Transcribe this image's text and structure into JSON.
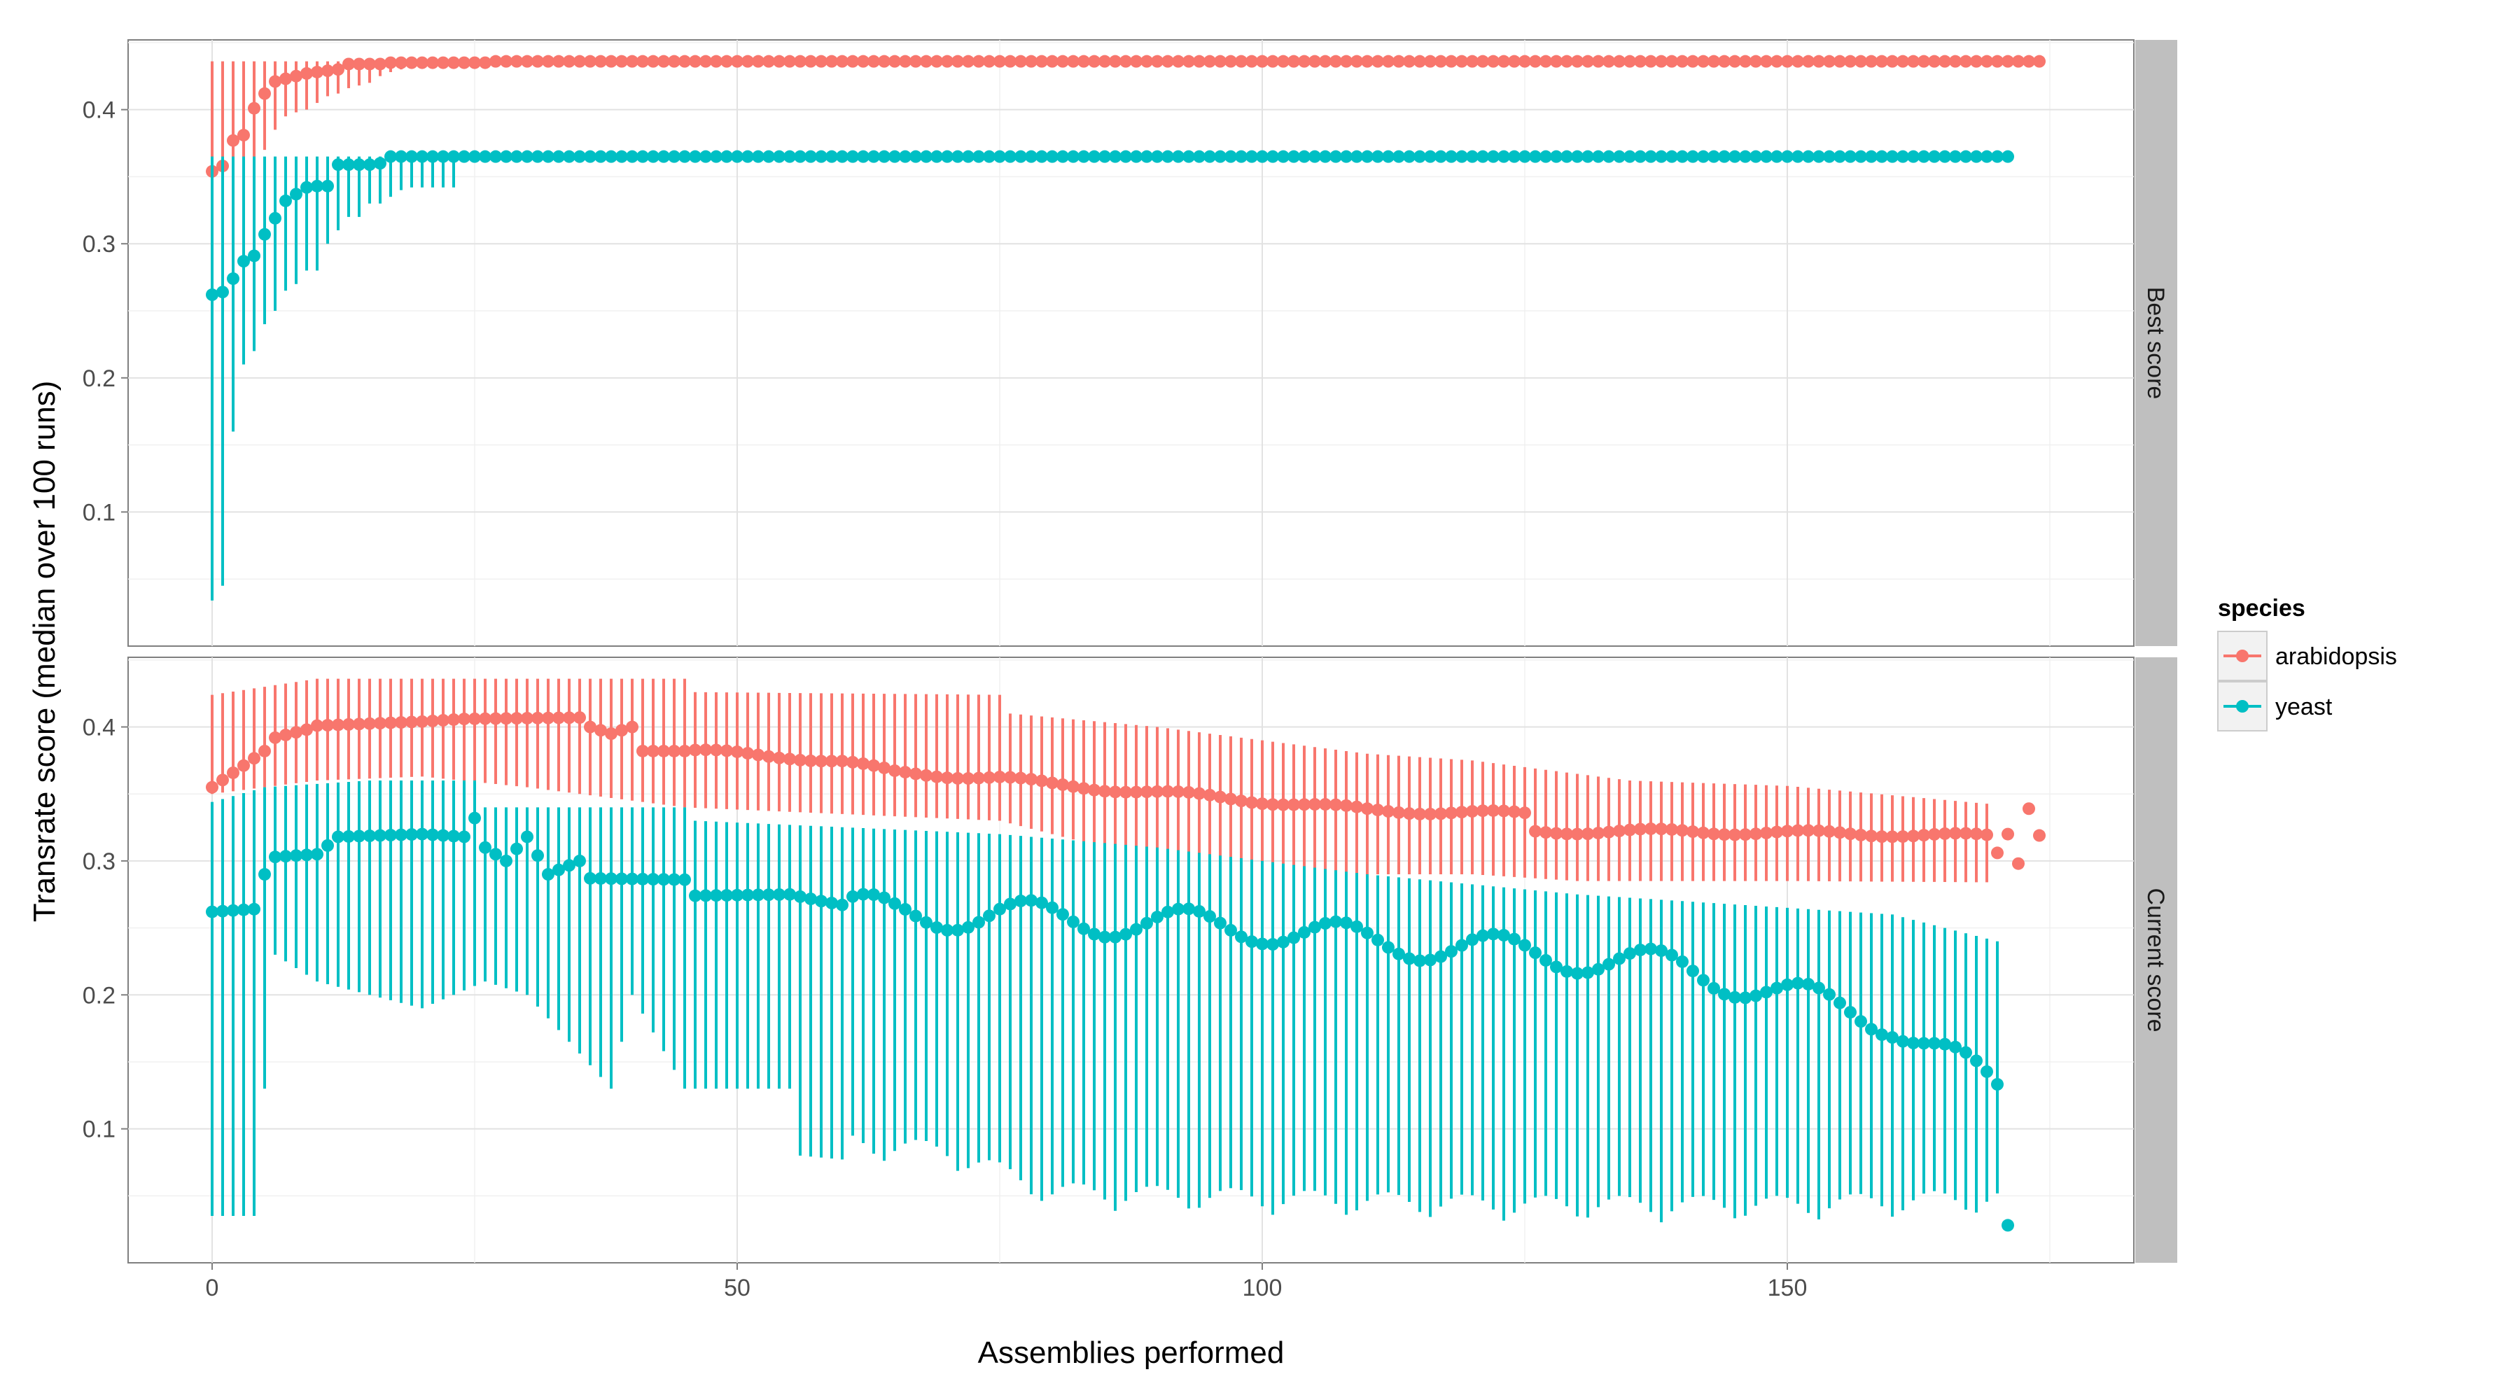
{
  "chart_data": {
    "type": "scatter",
    "description_type": "faceted point + errorbar (pointrange) chart",
    "xlabel": "Assemblies performed",
    "ylabel": "Transrate score (median over 100 runs)",
    "xlim": [
      -8,
      183
    ],
    "ylim": [
      0,
      0.452
    ],
    "x_ticks": [
      0,
      50,
      100,
      150
    ],
    "y_ticks": [
      0.1,
      0.2,
      0.3,
      0.4
    ],
    "y_tick_labels": [
      "0.1",
      "0.2",
      "0.3",
      "0.4"
    ],
    "grid": true,
    "legend": {
      "title": "species",
      "position": "right",
      "entries": [
        {
          "label": "arabidopsis",
          "color": "#F8766D"
        },
        {
          "label": "yeast",
          "color": "#00BFC4"
        }
      ]
    },
    "facets": [
      {
        "label": "Best score",
        "series": [
          {
            "name": "arabidopsis",
            "color": "#F8766D",
            "x_end": 174,
            "points": [
              [
                0,
                0.354
              ],
              [
                1,
                0.358
              ],
              [
                2,
                0.377
              ],
              [
                3,
                0.381
              ],
              [
                4,
                0.401
              ],
              [
                5,
                0.412
              ],
              [
                6,
                0.421
              ],
              [
                7,
                0.423
              ],
              [
                8,
                0.425
              ],
              [
                9,
                0.427
              ],
              [
                10,
                0.428
              ],
              [
                11,
                0.429
              ],
              [
                12,
                0.43
              ],
              [
                13,
                0.434
              ],
              [
                14,
                0.434
              ],
              [
                15,
                0.434
              ],
              [
                16,
                0.434
              ],
              [
                17,
                0.435
              ],
              [
                18,
                0.435
              ],
              [
                19,
                0.435
              ],
              [
                20,
                0.435
              ],
              [
                21,
                0.435
              ],
              [
                22,
                0.435
              ],
              [
                23,
                0.435
              ],
              [
                24,
                0.435
              ],
              [
                25,
                0.435
              ],
              [
                26,
                0.435
              ],
              [
                27,
                0.436
              ],
              [
                28,
                0.436
              ],
              [
                29,
                0.436
              ]
            ],
            "plateau": 0.436,
            "plateau_start": 30,
            "upper": 0.436,
            "lower_pts": [
              [
                0,
                0.3
              ],
              [
                1,
                0.31
              ],
              [
                2,
                0.32
              ],
              [
                3,
                0.345
              ],
              [
                4,
                0.355
              ],
              [
                5,
                0.37
              ],
              [
                6,
                0.385
              ],
              [
                7,
                0.395
              ],
              [
                8,
                0.398
              ],
              [
                9,
                0.4
              ],
              [
                10,
                0.405
              ],
              [
                11,
                0.41
              ],
              [
                12,
                0.412
              ],
              [
                13,
                0.416
              ],
              [
                14,
                0.418
              ],
              [
                15,
                0.42
              ],
              [
                16,
                0.425
              ],
              [
                17,
                0.428
              ],
              [
                18,
                0.43
              ],
              [
                19,
                0.432
              ],
              [
                20,
                0.432
              ],
              [
                21,
                0.432
              ],
              [
                22,
                0.433
              ],
              [
                23,
                0.433
              ],
              [
                24,
                0.434
              ],
              [
                25,
                0.434
              ],
              [
                26,
                0.435
              ],
              [
                27,
                0.436
              ]
            ]
          },
          {
            "name": "yeast",
            "color": "#00BFC4",
            "x_end": 171,
            "points": [
              [
                0,
                0.262
              ],
              [
                1,
                0.264
              ],
              [
                2,
                0.274
              ],
              [
                3,
                0.287
              ],
              [
                4,
                0.291
              ],
              [
                5,
                0.307
              ],
              [
                6,
                0.319
              ],
              [
                7,
                0.332
              ],
              [
                8,
                0.337
              ],
              [
                9,
                0.342
              ],
              [
                10,
                0.343
              ],
              [
                11,
                0.343
              ],
              [
                12,
                0.359
              ],
              [
                13,
                0.359
              ],
              [
                14,
                0.359
              ],
              [
                15,
                0.359
              ],
              [
                16,
                0.36
              ]
            ],
            "plateau": 0.365,
            "plateau_start": 17,
            "upper": 0.365,
            "lower_pts": [
              [
                0,
                0.034
              ],
              [
                1,
                0.045
              ],
              [
                2,
                0.16
              ],
              [
                3,
                0.21
              ],
              [
                4,
                0.22
              ],
              [
                5,
                0.24
              ],
              [
                6,
                0.25
              ],
              [
                7,
                0.265
              ],
              [
                8,
                0.27
              ],
              [
                9,
                0.28
              ],
              [
                10,
                0.28
              ],
              [
                11,
                0.3
              ],
              [
                12,
                0.31
              ],
              [
                13,
                0.32
              ],
              [
                14,
                0.32
              ],
              [
                15,
                0.33
              ],
              [
                16,
                0.33
              ],
              [
                17,
                0.335
              ],
              [
                18,
                0.34
              ],
              [
                19,
                0.342
              ],
              [
                20,
                0.342
              ],
              [
                21,
                0.342
              ],
              [
                22,
                0.342
              ],
              [
                23,
                0.342
              ]
            ]
          }
        ]
      },
      {
        "label": "Current score",
        "series": [
          {
            "name": "arabidopsis",
            "color": "#F8766D",
            "median_knots": [
              [
                0,
                0.355
              ],
              [
                5,
                0.382
              ],
              [
                6,
                0.392
              ],
              [
                9,
                0.398
              ],
              [
                10,
                0.401
              ],
              [
                20,
                0.404
              ],
              [
                24,
                0.406
              ],
              [
                35,
                0.407
              ],
              [
                36,
                0.4
              ],
              [
                38,
                0.395
              ],
              [
                40,
                0.4
              ],
              [
                41,
                0.382
              ],
              [
                44,
                0.382
              ],
              [
                45,
                0.382
              ],
              [
                55,
                0.378
              ],
              [
                60,
                0.374
              ],
              [
                65,
                0.366
              ],
              [
                75,
                0.362
              ],
              [
                80,
                0.357
              ],
              [
                95,
                0.348
              ],
              [
                110,
                0.338
              ],
              [
                125,
                0.335
              ],
              [
                126,
                0.322
              ],
              [
                140,
                0.322
              ],
              [
                160,
                0.32
              ],
              [
                170,
                0.318
              ]
            ],
            "upper_knots": [
              [
                0,
                0.424
              ],
              [
                10,
                0.436
              ],
              [
                45,
                0.436
              ],
              [
                46,
                0.426
              ],
              [
                75,
                0.424
              ],
              [
                76,
                0.41
              ],
              [
                90,
                0.4
              ],
              [
                100,
                0.39
              ],
              [
                110,
                0.38
              ],
              [
                120,
                0.375
              ],
              [
                135,
                0.36
              ],
              [
                150,
                0.356
              ],
              [
                170,
                0.342
              ]
            ],
            "lower_knots": [
              [
                0,
                0.35
              ],
              [
                10,
                0.36
              ],
              [
                20,
                0.363
              ],
              [
                30,
                0.355
              ],
              [
                40,
                0.345
              ],
              [
                45,
                0.34
              ],
              [
                60,
                0.335
              ],
              [
                75,
                0.33
              ],
              [
                90,
                0.3
              ],
              [
                100,
                0.295
              ],
              [
                110,
                0.29
              ],
              [
                120,
                0.29
              ],
              [
                130,
                0.285
              ],
              [
                150,
                0.285
              ],
              [
                170,
                0.284
              ]
            ],
            "extra_points": [
              [
                170,
                0.306
              ],
              [
                171,
                0.32
              ],
              [
                172,
                0.298
              ],
              [
                173,
                0.339
              ],
              [
                174,
                0.319
              ]
            ]
          },
          {
            "name": "yeast",
            "color": "#00BFC4",
            "median_knots": [
              [
                0,
                0.262
              ],
              [
                4,
                0.264
              ],
              [
                5,
                0.29
              ],
              [
                6,
                0.303
              ],
              [
                10,
                0.305
              ],
              [
                12,
                0.318
              ],
              [
                20,
                0.32
              ],
              [
                24,
                0.318
              ],
              [
                25,
                0.332
              ],
              [
                26,
                0.31
              ],
              [
                28,
                0.3
              ],
              [
                30,
                0.318
              ],
              [
                32,
                0.29
              ],
              [
                35,
                0.3
              ],
              [
                36,
                0.287
              ],
              [
                45,
                0.286
              ],
              [
                46,
                0.274
              ],
              [
                55,
                0.275
              ],
              [
                58,
                0.27
              ],
              [
                65,
                0.26
              ],
              [
                75,
                0.26
              ],
              [
                85,
                0.255
              ],
              [
                100,
                0.25
              ],
              [
                110,
                0.24
              ],
              [
                120,
                0.235
              ],
              [
                130,
                0.228
              ],
              [
                140,
                0.22
              ],
              [
                150,
                0.2
              ],
              [
                160,
                0.18
              ],
              [
                170,
                0.13
              ]
            ],
            "upper_knots": [
              [
                0,
                0.344
              ],
              [
                5,
                0.355
              ],
              [
                15,
                0.36
              ],
              [
                25,
                0.36
              ],
              [
                26,
                0.34
              ],
              [
                45,
                0.34
              ],
              [
                46,
                0.33
              ],
              [
                75,
                0.32
              ],
              [
                90,
                0.31
              ],
              [
                110,
                0.29
              ],
              [
                130,
                0.275
              ],
              [
                150,
                0.265
              ],
              [
                160,
                0.26
              ],
              [
                170,
                0.24
              ]
            ],
            "lower_knots": [
              [
                0,
                0.035
              ],
              [
                4,
                0.035
              ],
              [
                5,
                0.13
              ],
              [
                6,
                0.23
              ],
              [
                10,
                0.21
              ],
              [
                20,
                0.19
              ],
              [
                26,
                0.21
              ],
              [
                30,
                0.2
              ],
              [
                38,
                0.13
              ],
              [
                40,
                0.2
              ],
              [
                45,
                0.13
              ],
              [
                55,
                0.13
              ],
              [
                56,
                0.08
              ],
              [
                70,
                0.07
              ],
              [
                80,
                0.04
              ],
              [
                100,
                0.035
              ],
              [
                125,
                0.03
              ],
              [
                150,
                0.03
              ],
              [
                170,
                0.035
              ]
            ],
            "extra_points": [
              [
                171,
                0.028
              ]
            ]
          }
        ]
      }
    ]
  }
}
